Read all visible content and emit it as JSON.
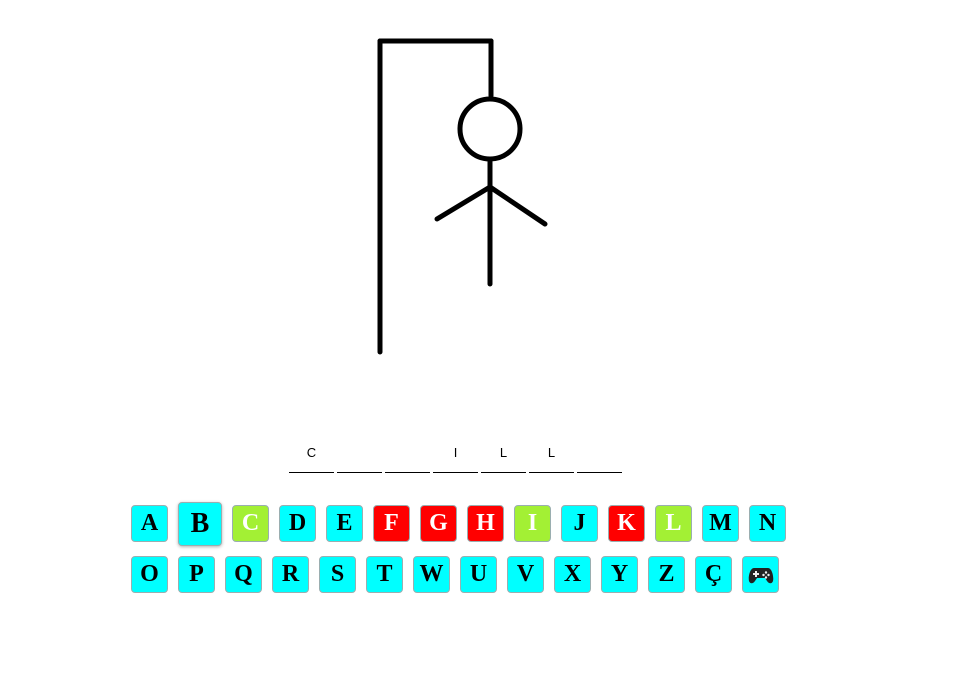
{
  "word": {
    "slots": [
      "C",
      "",
      "",
      "I",
      "L",
      "L",
      ""
    ]
  },
  "keyboard": {
    "row1": [
      {
        "label": "A",
        "state": "default"
      },
      {
        "label": "B",
        "state": "hover"
      },
      {
        "label": "C",
        "state": "correct"
      },
      {
        "label": "D",
        "state": "default"
      },
      {
        "label": "E",
        "state": "default"
      },
      {
        "label": "F",
        "state": "wrong"
      },
      {
        "label": "G",
        "state": "wrong"
      },
      {
        "label": "H",
        "state": "wrong"
      },
      {
        "label": "I",
        "state": "correct"
      },
      {
        "label": "J",
        "state": "default"
      },
      {
        "label": "K",
        "state": "wrong"
      },
      {
        "label": "L",
        "state": "correct"
      },
      {
        "label": "M",
        "state": "default"
      },
      {
        "label": "N",
        "state": "default"
      }
    ],
    "row2": [
      {
        "label": "O",
        "state": "default"
      },
      {
        "label": "P",
        "state": "default"
      },
      {
        "label": "Q",
        "state": "default"
      },
      {
        "label": "R",
        "state": "default"
      },
      {
        "label": "S",
        "state": "default"
      },
      {
        "label": "T",
        "state": "default"
      },
      {
        "label": "W",
        "state": "default"
      },
      {
        "label": "U",
        "state": "default"
      },
      {
        "label": "V",
        "state": "default"
      },
      {
        "label": "X",
        "state": "default"
      },
      {
        "label": "Y",
        "state": "default"
      },
      {
        "label": "Z",
        "state": "default"
      },
      {
        "label": "Ç",
        "state": "default"
      }
    ],
    "new_game_icon": "gamepad-icon"
  },
  "colors": {
    "key_default": "#00ffff",
    "key_correct": "#a3f034",
    "key_wrong": "#ff0000"
  }
}
